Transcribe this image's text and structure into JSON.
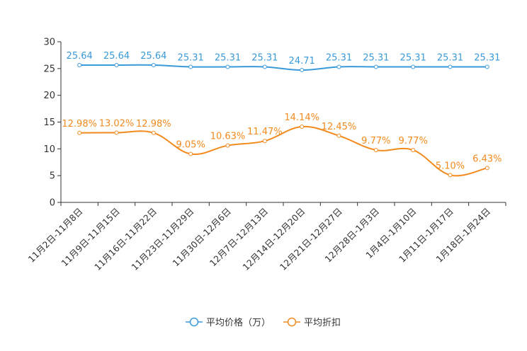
{
  "chart_data": {
    "type": "line",
    "title": "",
    "xlabel": "",
    "ylabel": "",
    "ylim": [
      0,
      30
    ],
    "yticks": [
      0,
      5,
      10,
      15,
      20,
      25,
      30
    ],
    "categories": [
      "11月2日-11月8日",
      "11月9日-11月15日",
      "11月16日-11月22日",
      "11月23日-11月29日",
      "11月30日-12月6日",
      "12月7日-12月13日",
      "12月14日-12月20日",
      "12月21日-12月27日",
      "12月28日-1月3日",
      "1月4日-1月10日",
      "1月11日-1月17日",
      "1月18日-1月24日"
    ],
    "series": [
      {
        "name": "平均价格（万）",
        "color": "#3a9ad9",
        "values": [
          25.64,
          25.64,
          25.64,
          25.31,
          25.31,
          25.31,
          24.71,
          25.31,
          25.31,
          25.31,
          25.31,
          25.31
        ],
        "labels": [
          "25.64",
          "25.64",
          "25.64",
          "25.31",
          "25.31",
          "25.31",
          "24.71",
          "25.31",
          "25.31",
          "25.31",
          "25.31",
          "25.31"
        ]
      },
      {
        "name": "平均折扣",
        "color": "#f28a1e",
        "values": [
          12.98,
          13.02,
          12.98,
          9.05,
          10.63,
          11.47,
          14.14,
          12.45,
          9.77,
          9.77,
          5.1,
          6.43
        ],
        "labels": [
          "12.98%",
          "13.02%",
          "12.98%",
          "9.05%",
          "10.63%",
          "11.47%",
          "14.14%",
          "12.45%",
          "9.77%",
          "9.77%",
          "5.10%",
          "6.43%"
        ]
      }
    ],
    "legend_position": "bottom-center"
  }
}
